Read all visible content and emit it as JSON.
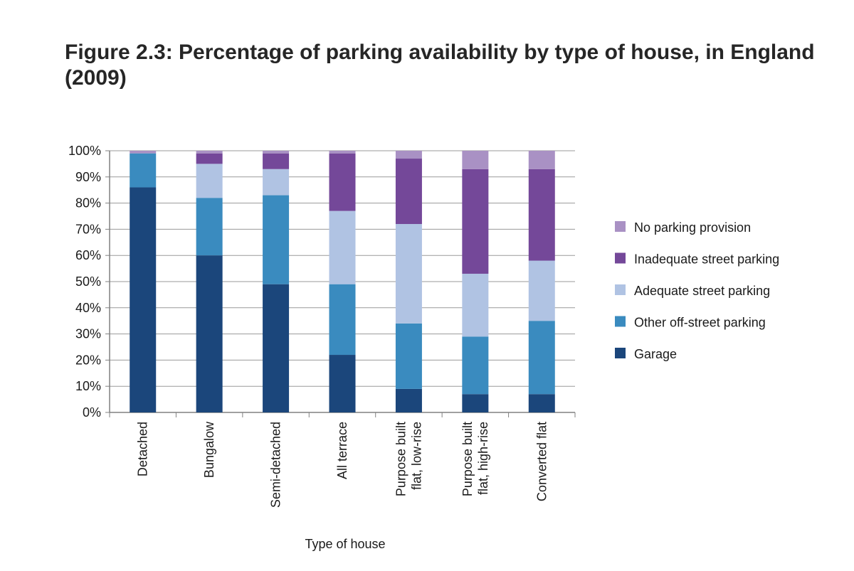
{
  "page": {
    "title": "Figure 2.3: Percentage of parking availability by type of house, in England (2009)"
  },
  "chart_data": {
    "type": "bar",
    "stacked": true,
    "title": "Figure 2.3: Percentage of parking availability by type of house, in England (2009)",
    "xlabel": "Type of house",
    "ylabel": "",
    "ylim": [
      0,
      100
    ],
    "yticks": [
      "0%",
      "10%",
      "20%",
      "30%",
      "40%",
      "50%",
      "60%",
      "70%",
      "80%",
      "90%",
      "100%"
    ],
    "grid": true,
    "legend_position": "right",
    "categories": [
      [
        "Detached"
      ],
      [
        "Bungalow"
      ],
      [
        "Semi-detached"
      ],
      [
        "All terrace"
      ],
      [
        "Purpose built",
        "flat, low-rise"
      ],
      [
        "Purpose built",
        "flat, high-rise"
      ],
      [
        "Converted flat"
      ]
    ],
    "series": [
      {
        "name": "Garage",
        "color": "#1b467b",
        "values": [
          86,
          60,
          49,
          22,
          9,
          7,
          7
        ]
      },
      {
        "name": "Other off-street parking",
        "color": "#3a8bbf",
        "values": [
          13,
          22,
          34,
          27,
          25,
          22,
          28
        ]
      },
      {
        "name": "Adequate street parking",
        "color": "#b0c3e3",
        "values": [
          0,
          13,
          10,
          28,
          38,
          24,
          23
        ]
      },
      {
        "name": "Inadequate street parking",
        "color": "#744899",
        "values": [
          0,
          4,
          6,
          22,
          25,
          40,
          35
        ]
      },
      {
        "name": "No parking provision",
        "color": "#a991c4",
        "values": [
          1,
          1,
          1,
          1,
          3,
          7,
          7
        ]
      }
    ],
    "legend_order": [
      "No parking provision",
      "Inadequate street parking",
      "Adequate street parking",
      "Other off-street parking",
      "Garage"
    ]
  }
}
